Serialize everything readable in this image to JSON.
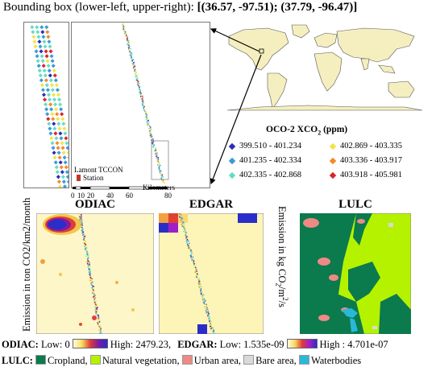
{
  "header": {
    "prefix": "Bounding  box (lower-left,  upper-right):",
    "coords": "[(36.57, -97.51); (37.79, -96.47)]"
  },
  "oco_legend": {
    "title": "OCO-2 XCO",
    "title_sub": "2",
    "title_unit": " (ppm)",
    "items": [
      {
        "range": "399.510  -  401.234",
        "color": "#2a2eb8"
      },
      {
        "range": "401.235  -  402.334",
        "color": "#3a9bd9"
      },
      {
        "range": "402.335  -  402.868",
        "color": "#66dcc6"
      },
      {
        "range": "402.869  -  403.335",
        "color": "#f2e44a"
      },
      {
        "range": "403.336  -  403.917",
        "color": "#f28a2a"
      },
      {
        "range": "403.918  -  405.981",
        "color": "#d9262a"
      }
    ]
  },
  "scale": {
    "ticks": [
      "0",
      "10",
      "20",
      "40",
      "60",
      "80"
    ],
    "unit": "Kilometers"
  },
  "station": {
    "line1": "Lamont TCCON",
    "line2": "Station"
  },
  "maps": {
    "odiac_title": "ODIAC",
    "edgar_title": "EDGAR",
    "lulc_title": "LULC"
  },
  "axis_labels": {
    "odiac_unit": "Emission in ton CO2/km2/month",
    "edgar_unit_prefix": "Emission in kg CO",
    "edgar_unit_sub": "2",
    "edgar_unit_mid": "/m",
    "edgar_unit_sup": "2",
    "edgar_unit_suffix": "/s"
  },
  "colorbar_line": {
    "odiac_label": "ODIAC:",
    "odiac_low": " Low: 0",
    "odiac_high": "High:  2479.23,",
    "edgar_label": "EDGAR:",
    "edgar_low": " Low: 1.535e-09",
    "edgar_high": "High : 4.701e-07"
  },
  "lulc_legend": {
    "label": "LULC:",
    "classes": [
      {
        "name": "Cropland,",
        "color": "#0b7a4c"
      },
      {
        "name": "Natural vegetation,",
        "color": "#b4f200"
      },
      {
        "name": "Urban area,",
        "color": "#ee8a86"
      },
      {
        "name": "Bare area,",
        "color": "#d9d9d9"
      },
      {
        "name": "Waterbodies",
        "color": "#2ab8d8"
      }
    ]
  }
}
